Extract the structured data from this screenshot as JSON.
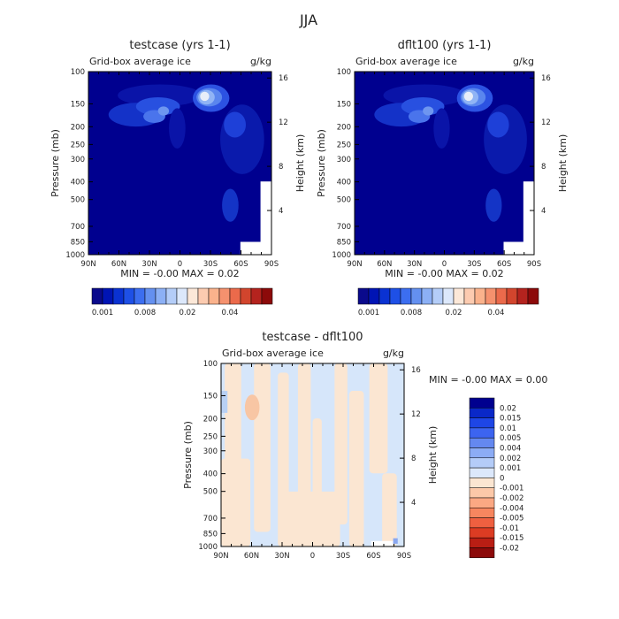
{
  "figure": {
    "title": "JJA",
    "colors": {
      "deep_blue": "#00008f",
      "diff_background": "#d6e6fa",
      "diff_positive": "#fbe6d2"
    }
  },
  "panels": [
    {
      "title": "testcase (yrs 1-1)",
      "left_label": "Grid-box average ice",
      "right_label": "g/kg",
      "ylabel": "Pressure (mb)",
      "ylabel_right": "Height (km)",
      "stats": "MIN =   -0.00    MAX =   0.02"
    },
    {
      "title": "dflt100 (yrs 1-1)",
      "left_label": "Grid-box average ice",
      "right_label": "g/kg",
      "ylabel": "Pressure (mb)",
      "ylabel_right": "Height (km)",
      "stats": "MIN =   -0.00    MAX =   0.02"
    },
    {
      "title": "testcase - dflt100",
      "left_label": "Grid-box average ice",
      "right_label": "g/kg",
      "ylabel": "Pressure (mb)",
      "ylabel_right": "Height (km)",
      "stats": "MIN =   -0.00    MAX =   0.00"
    }
  ],
  "colorbars": {
    "top_colors": [
      "#0a0a8c",
      "#0014b4",
      "#0a32d2",
      "#1e50e6",
      "#3c6ef0",
      "#6490f0",
      "#8cb0f5",
      "#b4cdf8",
      "#dce8fb",
      "#fce8d8",
      "#fccbb0",
      "#fab28c",
      "#f5916e",
      "#eb6a4b",
      "#d2452d",
      "#b4231e",
      "#8c0a0a"
    ],
    "top_labels": [
      "0.001",
      "0.008",
      "0.02",
      "0.04"
    ],
    "diff_colors": [
      "#00008f",
      "#0a28c8",
      "#1e46e6",
      "#3c64f0",
      "#6488f0",
      "#8cacf5",
      "#b4ccf8",
      "#dce8fb",
      "#fbe6d2",
      "#fcc8a8",
      "#fba883",
      "#f7865f",
      "#ef6040",
      "#dc3c23",
      "#b91e14",
      "#8c0a0a"
    ],
    "diff_labels": [
      "0.02",
      "0.015",
      "0.01",
      "0.005",
      "0.004",
      "0.002",
      "0.001",
      "0",
      "-0.001",
      "-0.002",
      "-0.004",
      "-0.005",
      "-0.01",
      "-0.015",
      "-0.02"
    ]
  },
  "chart_data": [
    {
      "type": "heatmap",
      "title": "testcase (yrs 1-1)",
      "subtitle": "Grid-box average ice (g/kg)",
      "xlabel": "",
      "ylabel": "Pressure (mb)",
      "y2label": "Height (km)",
      "x_ticks": [
        "90N",
        "60N",
        "30N",
        "0",
        "30S",
        "60S",
        "90S"
      ],
      "y_ticks": [
        100,
        150,
        200,
        250,
        300,
        400,
        500,
        700,
        850,
        1000
      ],
      "y2_ticks": [
        16,
        12,
        8,
        4
      ],
      "xlim": [
        90,
        -90
      ],
      "ylim": [
        1000,
        100
      ],
      "y_scale": "log",
      "min": -0.0,
      "max": 0.02,
      "features": [
        {
          "lat": 45,
          "p": 260,
          "value": 0.01
        },
        {
          "lat": 15,
          "p": 190,
          "value": 0.02
        },
        {
          "lat": -50,
          "p": 350,
          "value": 0.004
        },
        {
          "lat": -55,
          "p": 650,
          "value": 0.002
        }
      ]
    },
    {
      "type": "heatmap",
      "title": "dflt100 (yrs 1-1)",
      "subtitle": "Grid-box average ice (g/kg)",
      "xlabel": "",
      "ylabel": "Pressure (mb)",
      "y2label": "Height (km)",
      "x_ticks": [
        "90N",
        "60N",
        "30N",
        "0",
        "30S",
        "60S",
        "90S"
      ],
      "y_ticks": [
        100,
        150,
        200,
        250,
        300,
        400,
        500,
        700,
        850,
        1000
      ],
      "y2_ticks": [
        16,
        12,
        8,
        4
      ],
      "xlim": [
        90,
        -90
      ],
      "ylim": [
        1000,
        100
      ],
      "y_scale": "log",
      "min": -0.0,
      "max": 0.02,
      "features": [
        {
          "lat": 45,
          "p": 260,
          "value": 0.01
        },
        {
          "lat": 15,
          "p": 190,
          "value": 0.02
        },
        {
          "lat": -50,
          "p": 350,
          "value": 0.004
        },
        {
          "lat": -55,
          "p": 650,
          "value": 0.002
        }
      ]
    },
    {
      "type": "heatmap",
      "title": "testcase - dflt100",
      "subtitle": "Grid-box average ice (g/kg)",
      "xlabel": "",
      "ylabel": "Pressure (mb)",
      "y2label": "Height (km)",
      "x_ticks": [
        "90N",
        "60N",
        "30N",
        "0",
        "30S",
        "60S",
        "90S"
      ],
      "y_ticks": [
        100,
        150,
        200,
        250,
        300,
        400,
        500,
        700,
        850,
        1000
      ],
      "y2_ticks": [
        16,
        12,
        8,
        4
      ],
      "xlim": [
        90,
        -90
      ],
      "ylim": [
        1000,
        100
      ],
      "y_scale": "log",
      "min": -0.0,
      "max": 0.0,
      "levels": [
        0.02,
        0.015,
        0.01,
        0.005,
        0.004,
        0.002,
        0.001,
        0,
        -0.001,
        -0.002,
        -0.004,
        -0.005,
        -0.01,
        -0.015,
        -0.02
      ]
    }
  ]
}
